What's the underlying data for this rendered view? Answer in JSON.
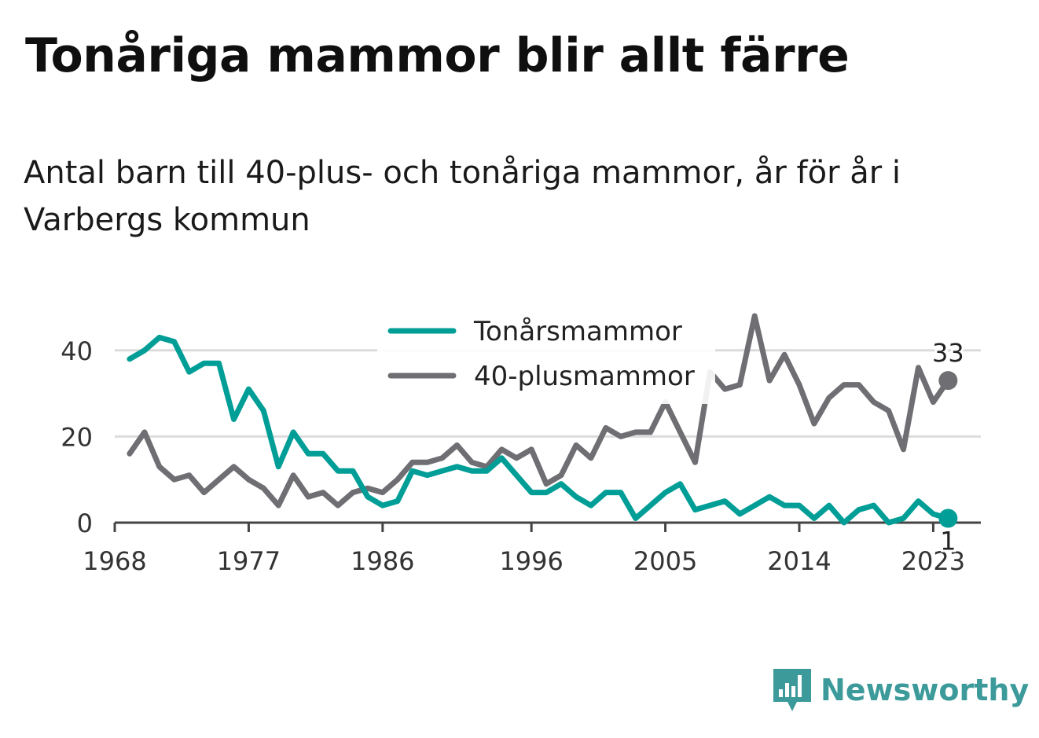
{
  "title": "Tonåriga mammor blir allt färre",
  "subtitle": "Antal barn till 40-plus- och tonåriga mammor, år för år i Varbergs kommun",
  "brand": {
    "name": "Newsworthy",
    "icon": "newsworthy-logo-icon",
    "color": "#3d9a9a"
  },
  "chart_data": {
    "type": "line",
    "x": [
      1969,
      1970,
      1971,
      1972,
      1973,
      1974,
      1975,
      1976,
      1977,
      1978,
      1979,
      1980,
      1981,
      1982,
      1983,
      1984,
      1985,
      1986,
      1987,
      1988,
      1989,
      1990,
      1991,
      1992,
      1993,
      1994,
      1995,
      1996,
      1997,
      1998,
      1999,
      2000,
      2001,
      2002,
      2003,
      2004,
      2005,
      2006,
      2007,
      2008,
      2009,
      2010,
      2011,
      2012,
      2013,
      2014,
      2015,
      2016,
      2017,
      2018,
      2019,
      2020,
      2021,
      2022,
      2023,
      2024
    ],
    "series": [
      {
        "name": "Tonårsmammor",
        "color": "#009e96",
        "values": [
          38,
          40,
          43,
          42,
          35,
          37,
          37,
          24,
          31,
          26,
          13,
          21,
          16,
          16,
          12,
          12,
          6,
          4,
          5,
          12,
          11,
          12,
          13,
          12,
          12,
          15,
          11,
          7,
          7,
          9,
          6,
          4,
          7,
          7,
          1,
          4,
          7,
          9,
          3,
          4,
          5,
          2,
          4,
          6,
          4,
          4,
          1,
          4,
          0,
          3,
          4,
          0,
          1,
          5,
          2,
          1
        ],
        "end_label": "1"
      },
      {
        "name": "40-plusmammor",
        "color": "#6e6e73",
        "values": [
          16,
          21,
          13,
          10,
          11,
          7,
          10,
          13,
          10,
          8,
          4,
          11,
          6,
          7,
          4,
          7,
          8,
          7,
          10,
          14,
          14,
          15,
          18,
          14,
          13,
          17,
          15,
          17,
          9,
          11,
          18,
          15,
          22,
          20,
          21,
          21,
          28,
          21,
          14,
          35,
          31,
          32,
          48,
          33,
          39,
          32,
          23,
          29,
          32,
          32,
          28,
          26,
          17,
          36,
          28,
          33
        ],
        "end_label": "33"
      }
    ],
    "xticks": [
      "1968",
      "1977",
      "1986",
      "1996",
      "2005",
      "2014",
      "2023"
    ],
    "yticks": [
      "0",
      "20",
      "40"
    ],
    "ylim": [
      0,
      50
    ],
    "grid": true,
    "legend": "top-center"
  }
}
